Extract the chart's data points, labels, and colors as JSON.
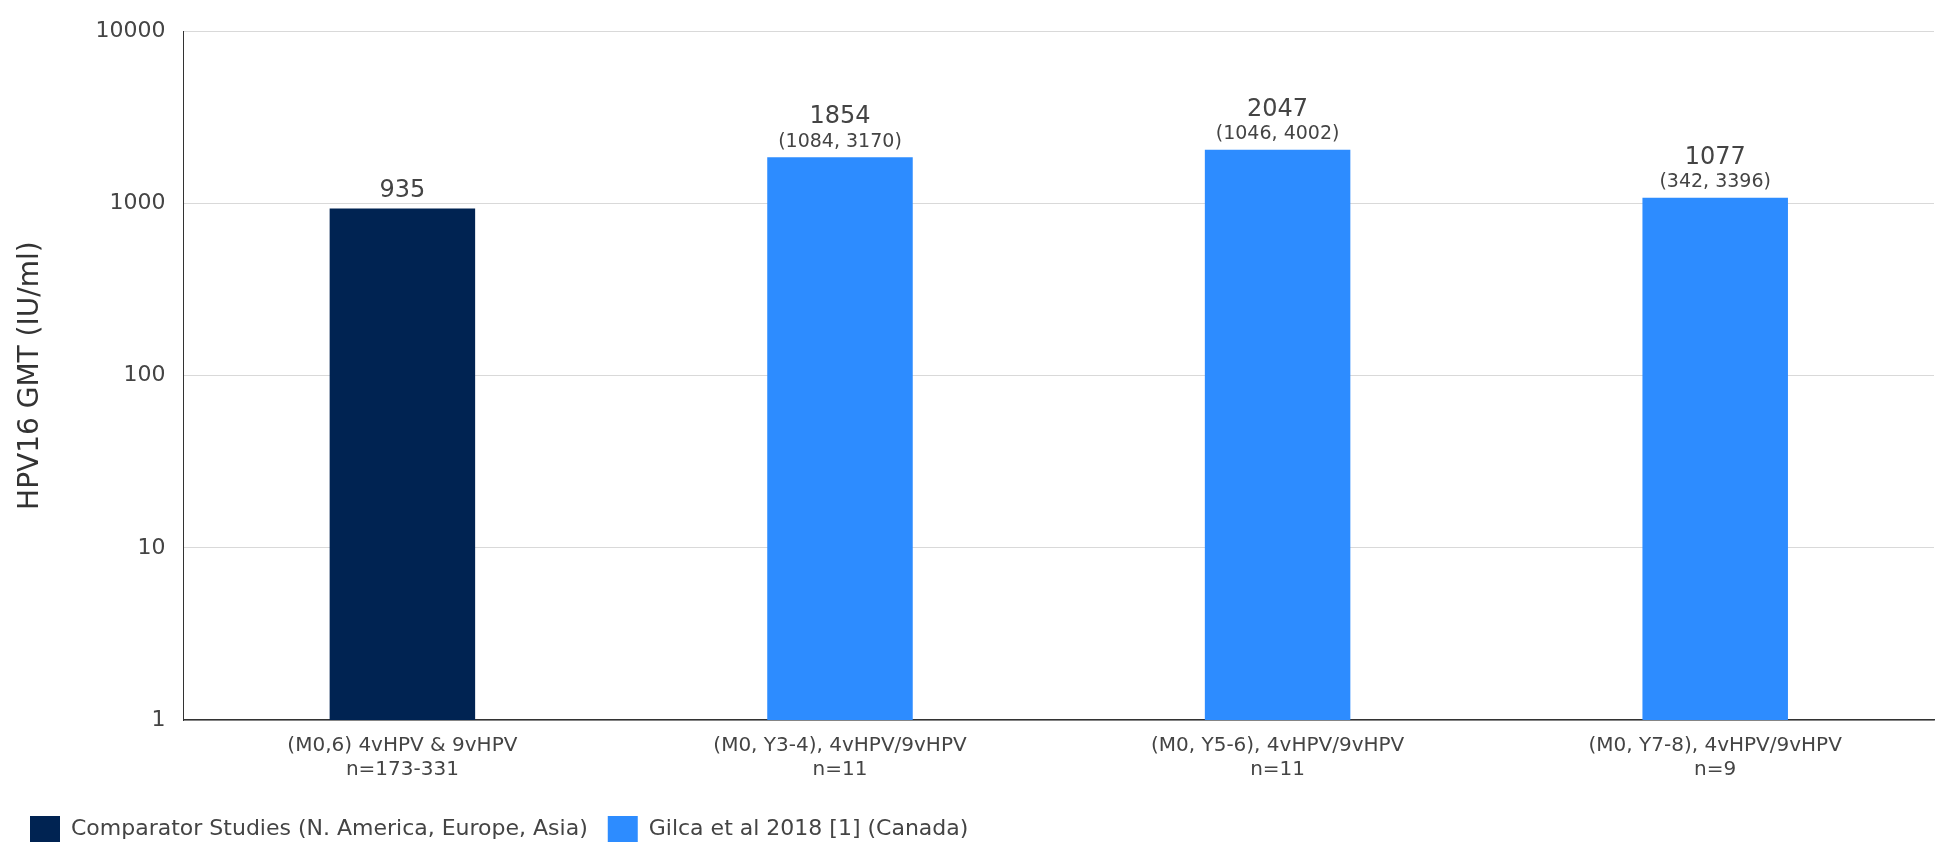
{
  "chart_data": {
    "type": "bar",
    "ylabel": "HPV16 GMT (IU/ml)",
    "categories": [
      "(M0,6) 4vHPV & 9vHPV\nn=173-331",
      "(M0, Y3-4), 4vHPV/9vHPV\nn=11",
      "(M0, Y5-6), 4vHPV/9vHPV\nn=11",
      "(M0, Y7-8), 4vHPV/9vHPV\nn=9"
    ],
    "series": [
      {
        "name": "Comparator Studies (N. America, Europe, Asia)",
        "color": "#002352",
        "values": [
          935,
          null,
          null,
          null
        ],
        "value_labels": [
          "935",
          null,
          null,
          null
        ]
      },
      {
        "name": "Gilca et al 2018 [1] (Canada)",
        "color": "#2d8cff",
        "values": [
          null,
          1854,
          2047,
          1077
        ],
        "value_labels": [
          null,
          "1854\n(1084, 3170)",
          "2047\n(1046, 4002)",
          "1077\n(342, 3396)"
        ]
      }
    ],
    "log": true,
    "ylim": [
      1,
      10000
    ],
    "yticks": [
      1,
      10,
      100,
      1000,
      10000
    ],
    "grid": "y",
    "legend": "bottom"
  }
}
